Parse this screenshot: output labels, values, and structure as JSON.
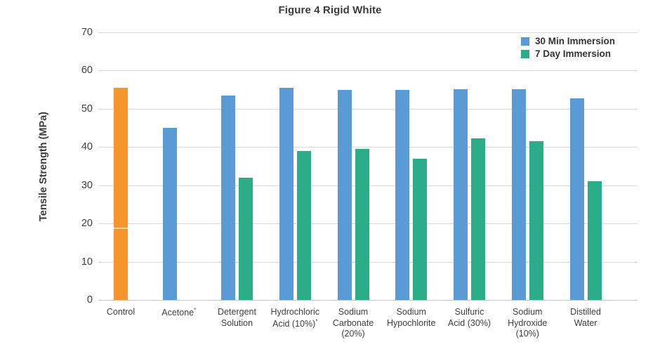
{
  "chart_data": {
    "type": "bar",
    "title": "Figure 4 Rigid White",
    "ylabel": "Tensile Strength (MPa)",
    "xlabel": "",
    "ylim": [
      0,
      70
    ],
    "yticks": [
      0,
      10,
      20,
      30,
      40,
      50,
      60,
      70
    ],
    "grid": "horizontal",
    "legend_position": "top-right",
    "categories": [
      "Control",
      "Acetone*",
      "Detergent Solution",
      "Hydrochloric Acid (10%)*",
      "Sodium Carbonate (20%)",
      "Sodium Hypochlorite",
      "Sulfuric Acid (30%)",
      "Sodium Hydroxide (10%)",
      "Distilled Water"
    ],
    "category_label_lines": [
      [
        "Control"
      ],
      [
        "Acetone*"
      ],
      [
        "Detergent",
        "Solution"
      ],
      [
        "Hydrochloric",
        "Acid (10%)*"
      ],
      [
        "Sodium",
        "Carbonate",
        "(20%)"
      ],
      [
        "Sodium",
        "Hypochlorite"
      ],
      [
        "Sulfuric",
        "Acid (30%)"
      ],
      [
        "Sodium",
        "Hydroxide",
        "(10%)"
      ],
      [
        "Distilled",
        "Water"
      ]
    ],
    "series": [
      {
        "name": "30 Min Immersion",
        "color": "#5B9BD5",
        "values": [
          55.5,
          45.0,
          53.5,
          55.5,
          54.9,
          55.0,
          55.2,
          55.2,
          52.8
        ]
      },
      {
        "name": "7 Day Immersion",
        "color": "#2BAD89",
        "values": [
          null,
          null,
          32.0,
          39.0,
          39.5,
          37.0,
          42.2,
          41.5,
          31.0
        ]
      }
    ],
    "control_bar_color": "#F5952C",
    "control_bar_stripe_mpa": 18.5,
    "colors": {
      "gridline": "#D9D9D9",
      "axis": "#C6C6C6",
      "tick_text": "#3F3F3F",
      "title_text": "#3B3B3B"
    }
  }
}
